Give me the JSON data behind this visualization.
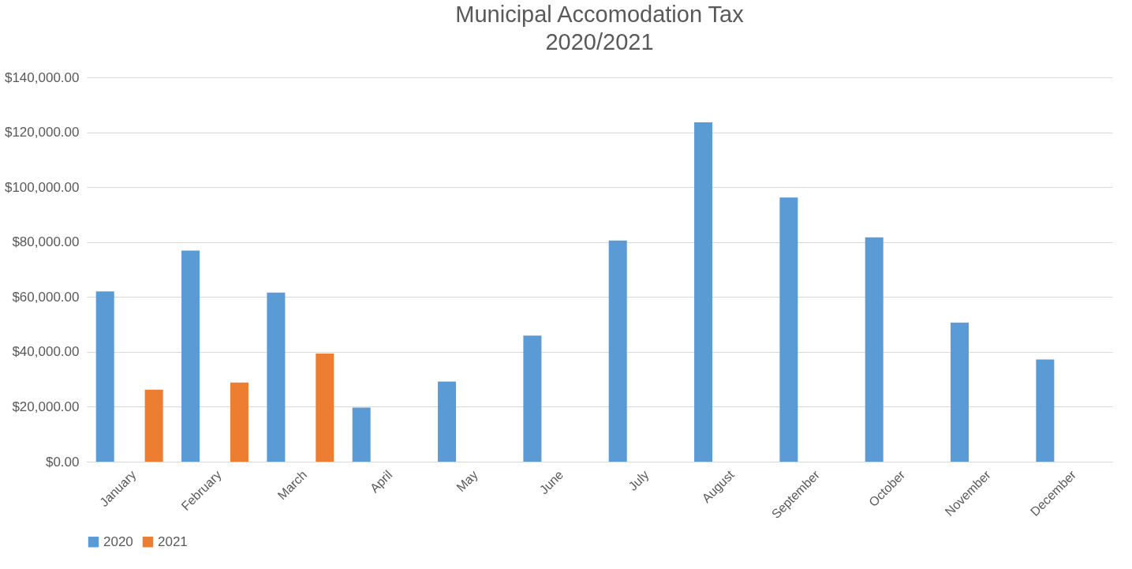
{
  "chart_data": {
    "type": "bar",
    "title": "Municipal Accomodation Tax",
    "subtitle": "2020/2021",
    "categories": [
      "January",
      "February",
      "March",
      "April",
      "May",
      "June",
      "July",
      "August",
      "September",
      "October",
      "November",
      "December"
    ],
    "series": [
      {
        "name": "2020",
        "color": "#5b9bd5",
        "values": [
          62000,
          76900,
          61600,
          19700,
          29200,
          45900,
          80600,
          123600,
          96200,
          81700,
          50700,
          37200
        ]
      },
      {
        "name": "2021",
        "color": "#ed7d31",
        "values": [
          26200,
          28800,
          39400,
          null,
          null,
          null,
          null,
          null,
          null,
          null,
          null,
          null
        ]
      }
    ],
    "ylim": [
      0,
      140000
    ],
    "yticks": [
      {
        "value": 0,
        "label": "$0.00"
      },
      {
        "value": 20000,
        "label": "$20,000.00"
      },
      {
        "value": 40000,
        "label": "$40,000.00"
      },
      {
        "value": 60000,
        "label": "$60,000.00"
      },
      {
        "value": 80000,
        "label": "$80,000.00"
      },
      {
        "value": 100000,
        "label": "$100,000.00"
      },
      {
        "value": 120000,
        "label": "$120,000.00"
      },
      {
        "value": 140000,
        "label": "$140,000.00"
      }
    ],
    "grid": "y",
    "legend": "bottom"
  }
}
